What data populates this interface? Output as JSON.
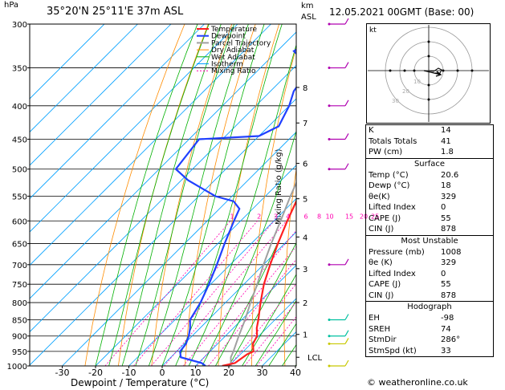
{
  "header": {
    "pressure_unit": "hPa",
    "location": "35°20'N  25°11'E  37m  ASL",
    "km_label": "km",
    "asl_label": "ASL",
    "datetime": "12.05.2021  00GMT  (Base: 00)",
    "credit": "© weatheronline.co.uk"
  },
  "chart_data": {
    "type": "line",
    "title": "35°20'N  25°11'E  37m  ASL",
    "xlabel": "Dewpoint / Temperature (°C)",
    "ylabel": "hPa",
    "xlim": [
      -35,
      40
    ],
    "ylim": [
      1000,
      300
    ],
    "y_scale": "log",
    "skew": true,
    "x_ticks": [
      "-30",
      "-20",
      "-10",
      "0",
      "10",
      "20",
      "30",
      "40"
    ],
    "y_ticks": [
      "300",
      "350",
      "400",
      "450",
      "500",
      "550",
      "600",
      "650",
      "700",
      "750",
      "800",
      "850",
      "900",
      "950",
      "1000"
    ],
    "km_ticks": [
      {
        "label": "8",
        "p": 375
      },
      {
        "label": "7",
        "p": 425
      },
      {
        "label": "6",
        "p": 490
      },
      {
        "label": "5",
        "p": 555
      },
      {
        "label": "4",
        "p": 635
      },
      {
        "label": "3",
        "p": 710
      },
      {
        "label": "2",
        "p": 800
      },
      {
        "label": "1",
        "p": 895
      },
      {
        "label": "LCL",
        "p": 970
      }
    ],
    "mixing_ratio_axis_label": "Mixing Ratio (g/kg)",
    "mixing_ratio_labels": [
      "1",
      "2",
      "3",
      "4",
      "6",
      "8",
      "10",
      "15",
      "20",
      "25"
    ],
    "mixing_ratios": [
      1,
      2,
      3,
      4,
      6,
      8,
      10,
      15,
      20,
      25
    ],
    "legend": [
      "Temperature",
      "Dewpoint",
      "Parcel Trajectory",
      "Dry Adiabat",
      "Wet Adiabat",
      "Isotherm",
      "Mixing Ratio"
    ],
    "series": [
      {
        "name": "Temperature",
        "color": "#ff2020",
        "points": [
          [
            1000,
            18
          ],
          [
            990,
            21
          ],
          [
            960,
            22
          ],
          [
            950,
            23
          ],
          [
            925,
            20.6
          ],
          [
            900,
            19.5
          ],
          [
            875,
            17
          ],
          [
            850,
            15
          ],
          [
            800,
            10.5
          ],
          [
            750,
            6
          ],
          [
            700,
            2
          ],
          [
            650,
            -2
          ],
          [
            600,
            -6
          ],
          [
            550,
            -10
          ],
          [
            500,
            -14.5
          ],
          [
            450,
            -19.5
          ],
          [
            400,
            -24
          ],
          [
            350,
            -31
          ],
          [
            300,
            -40
          ]
        ]
      },
      {
        "name": "Dewpoint",
        "color": "#2040ff",
        "points": [
          [
            1000,
            13
          ],
          [
            990,
            11
          ],
          [
            970,
            3
          ],
          [
            950,
            1
          ],
          [
            925,
            0.5
          ],
          [
            900,
            -1
          ],
          [
            875,
            -3
          ],
          [
            850,
            -5.5
          ],
          [
            800,
            -7.5
          ],
          [
            750,
            -10.5
          ],
          [
            700,
            -14
          ],
          [
            650,
            -18
          ],
          [
            600,
            -22
          ],
          [
            575,
            -24
          ],
          [
            560,
            -28
          ],
          [
            550,
            -35
          ],
          [
            520,
            -48
          ],
          [
            500,
            -55
          ],
          [
            450,
            -57
          ],
          [
            445,
            -40
          ],
          [
            430,
            -37
          ],
          [
            400,
            -40
          ],
          [
            380,
            -43
          ],
          [
            350,
            -45
          ],
          [
            330,
            -55
          ],
          [
            300,
            -50
          ]
        ]
      },
      {
        "name": "Parcel Trajectory",
        "color": "#a0a0a0",
        "points": [
          [
            1000,
            20.6
          ],
          [
            970,
            18
          ],
          [
            950,
            17
          ],
          [
            900,
            14
          ],
          [
            850,
            11
          ],
          [
            800,
            7.5
          ],
          [
            750,
            4
          ],
          [
            700,
            0
          ],
          [
            650,
            -4
          ],
          [
            600,
            -8
          ],
          [
            550,
            -12.5
          ],
          [
            500,
            -17
          ],
          [
            450,
            -22
          ],
          [
            400,
            -28
          ],
          [
            350,
            -35
          ],
          [
            300,
            -43
          ]
        ]
      }
    ]
  },
  "indices": [
    {
      "label": "K",
      "value": "14"
    },
    {
      "label": "Totals Totals",
      "value": "41"
    },
    {
      "label": "PW (cm)",
      "value": "1.8"
    }
  ],
  "surface": {
    "title": "Surface",
    "rows": [
      {
        "label": "Temp (°C)",
        "value": "20.6"
      },
      {
        "label": "Dewp (°C)",
        "value": "18"
      },
      {
        "label": "θe(K)",
        "value": "329"
      },
      {
        "label": "Lifted Index",
        "value": "0"
      },
      {
        "label": "CAPE (J)",
        "value": "55"
      },
      {
        "label": "CIN (J)",
        "value": "878"
      }
    ]
  },
  "most_unstable": {
    "title": "Most Unstable",
    "rows": [
      {
        "label": "Pressure (mb)",
        "value": "1008"
      },
      {
        "label": "θe (K)",
        "value": "329"
      },
      {
        "label": "Lifted Index",
        "value": "0"
      },
      {
        "label": "CAPE (J)",
        "value": "55"
      },
      {
        "label": "CIN (J)",
        "value": "878"
      }
    ]
  },
  "hodograph": {
    "title": "Hodograph",
    "kt_label": "kt",
    "ring_labels": [
      "10",
      "20",
      "30"
    ],
    "rows": [
      {
        "label": "EH",
        "value": "-98"
      },
      {
        "label": "SREH",
        "value": "74"
      },
      {
        "label": "StmDir",
        "value": "286°"
      },
      {
        "label": "StmSpd (kt)",
        "value": "33"
      }
    ]
  },
  "colors": {
    "temperature": "#ff2020",
    "dewpoint": "#2040ff",
    "parcel": "#a0a0a0",
    "dry_adiabat": "#ff8c00",
    "wet_adiabat": "#00b000",
    "isotherm": "#00a0ff",
    "mixing_ratio": "#ff00b0"
  }
}
